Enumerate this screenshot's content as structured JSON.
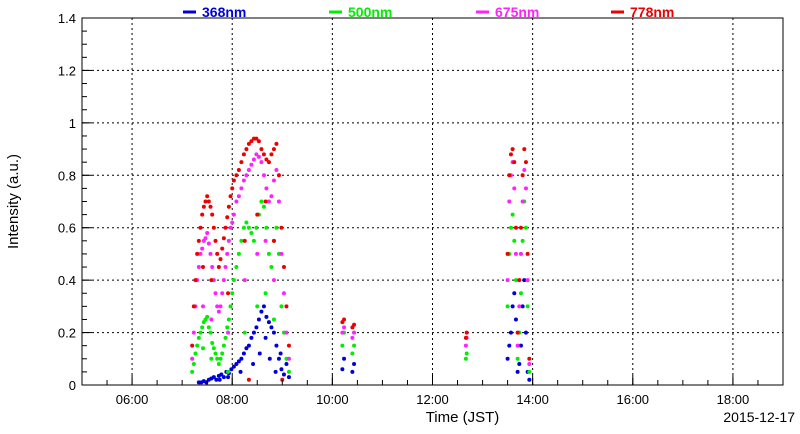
{
  "chart_data": {
    "type": "scatter",
    "xlabel": "Time (JST)",
    "ylabel": "Intensity (a.u.)",
    "date_label": "2015-12-17",
    "xlim": [
      "05:00",
      "19:00"
    ],
    "ylim": [
      0,
      1.4
    ],
    "x_ticks": [
      "06:00",
      "08:00",
      "10:00",
      "12:00",
      "14:00",
      "16:00",
      "18:00"
    ],
    "y_ticks": [
      "0",
      "0.2",
      "0.4",
      "0.6",
      "0.8",
      "1",
      "1.2",
      "1.4"
    ],
    "grid": true,
    "legend_position": "top",
    "series": [
      {
        "name": "368nm",
        "color": "#0000dd",
        "points": [
          [
            "07:20",
            0.01
          ],
          [
            "07:23",
            0.01
          ],
          [
            "07:26",
            0.015
          ],
          [
            "07:29",
            0.01
          ],
          [
            "07:32",
            0.02
          ],
          [
            "07:35",
            0.025
          ],
          [
            "07:38",
            0.03
          ],
          [
            "07:41",
            0.02
          ],
          [
            "07:44",
            0.035
          ],
          [
            "07:47",
            0.04
          ],
          [
            "07:50",
            0.03
          ],
          [
            "07:53",
            0.05
          ],
          [
            "07:56",
            0.045
          ],
          [
            "07:59",
            0.06
          ],
          [
            "08:02",
            0.07
          ],
          [
            "08:05",
            0.08
          ],
          [
            "08:08",
            0.09
          ],
          [
            "08:11",
            0.1
          ],
          [
            "08:14",
            0.12
          ],
          [
            "08:17",
            0.14
          ],
          [
            "08:20",
            0.15
          ],
          [
            "08:23",
            0.18
          ],
          [
            "08:26",
            0.2
          ],
          [
            "08:29",
            0.22
          ],
          [
            "08:32",
            0.25
          ],
          [
            "08:35",
            0.28
          ],
          [
            "08:38",
            0.3
          ],
          [
            "08:41",
            0.26
          ],
          [
            "08:44",
            0.24
          ],
          [
            "08:47",
            0.22
          ],
          [
            "08:50",
            0.2
          ],
          [
            "08:53",
            0.15
          ],
          [
            "08:56",
            0.1
          ],
          [
            "08:59",
            0.06
          ],
          [
            "09:02",
            0.04
          ],
          [
            "09:05",
            0.08
          ],
          [
            "09:08",
            0.03
          ],
          [
            "07:45",
            0.02
          ],
          [
            "07:55",
            0.03
          ],
          [
            "08:10",
            0.05
          ],
          [
            "08:25",
            0.08
          ],
          [
            "08:33",
            0.12
          ],
          [
            "08:40",
            0.18
          ],
          [
            "08:45",
            0.1
          ],
          [
            "08:52",
            0.05
          ],
          [
            "08:58",
            0.12
          ],
          [
            "10:12",
            0.06
          ],
          [
            "10:14",
            0.1
          ],
          [
            "10:24",
            0.05
          ],
          [
            "10:26",
            0.08
          ],
          [
            "13:30",
            0.1
          ],
          [
            "13:32",
            0.15
          ],
          [
            "13:34",
            0.2
          ],
          [
            "13:36",
            0.3
          ],
          [
            "13:38",
            0.35
          ],
          [
            "13:40",
            0.25
          ],
          [
            "13:42",
            0.05
          ],
          [
            "13:44",
            0.08
          ],
          [
            "13:46",
            0.15
          ],
          [
            "13:48",
            0.3
          ],
          [
            "13:50",
            0.4
          ],
          [
            "13:52",
            0.2
          ],
          [
            "13:54",
            0.05
          ],
          [
            "13:56",
            0.02
          ]
        ]
      },
      {
        "name": "500nm",
        "color": "#00ee00",
        "points": [
          [
            "07:12",
            0.05
          ],
          [
            "07:14",
            0.08
          ],
          [
            "07:16",
            0.12
          ],
          [
            "07:18",
            0.15
          ],
          [
            "07:20",
            0.18
          ],
          [
            "07:22",
            0.2
          ],
          [
            "07:24",
            0.22
          ],
          [
            "07:26",
            0.24
          ],
          [
            "07:28",
            0.25
          ],
          [
            "07:30",
            0.26
          ],
          [
            "07:32",
            0.22
          ],
          [
            "07:34",
            0.2
          ],
          [
            "07:36",
            0.16
          ],
          [
            "07:38",
            0.14
          ],
          [
            "07:40",
            0.12
          ],
          [
            "07:42",
            0.1
          ],
          [
            "07:44",
            0.08
          ],
          [
            "07:46",
            0.1
          ],
          [
            "07:48",
            0.12
          ],
          [
            "07:50",
            0.15
          ],
          [
            "07:52",
            0.18
          ],
          [
            "07:54",
            0.22
          ],
          [
            "07:56",
            0.25
          ],
          [
            "07:58",
            0.3
          ],
          [
            "08:00",
            0.35
          ],
          [
            "08:02",
            0.4
          ],
          [
            "08:05",
            0.45
          ],
          [
            "08:08",
            0.5
          ],
          [
            "08:11",
            0.55
          ],
          [
            "08:14",
            0.6
          ],
          [
            "08:17",
            0.62
          ],
          [
            "08:20",
            0.6
          ],
          [
            "08:23",
            0.58
          ],
          [
            "08:26",
            0.55
          ],
          [
            "08:29",
            0.6
          ],
          [
            "08:32",
            0.65
          ],
          [
            "08:35",
            0.7
          ],
          [
            "08:38",
            0.68
          ],
          [
            "08:41",
            0.6
          ],
          [
            "08:44",
            0.5
          ],
          [
            "08:47",
            0.45
          ],
          [
            "08:50",
            0.55
          ],
          [
            "08:53",
            0.6
          ],
          [
            "08:56",
            0.5
          ],
          [
            "08:59",
            0.3
          ],
          [
            "09:02",
            0.2
          ],
          [
            "09:05",
            0.1
          ],
          [
            "09:08",
            0.05
          ],
          [
            "07:25",
            0.14
          ],
          [
            "07:35",
            0.1
          ],
          [
            "07:55",
            0.05
          ],
          [
            "08:15",
            0.2
          ],
          [
            "08:30",
            0.3
          ],
          [
            "08:40",
            0.35
          ],
          [
            "08:50",
            0.25
          ],
          [
            "10:12",
            0.15
          ],
          [
            "10:14",
            0.2
          ],
          [
            "10:24",
            0.12
          ],
          [
            "10:26",
            0.15
          ],
          [
            "12:40",
            0.1
          ],
          [
            "12:41",
            0.12
          ],
          [
            "13:30",
            0.3
          ],
          [
            "13:32",
            0.5
          ],
          [
            "13:34",
            0.6
          ],
          [
            "13:36",
            0.65
          ],
          [
            "13:38",
            0.55
          ],
          [
            "13:40",
            0.4
          ],
          [
            "13:42",
            0.1
          ],
          [
            "13:44",
            0.2
          ],
          [
            "13:46",
            0.35
          ],
          [
            "13:48",
            0.55
          ],
          [
            "13:50",
            0.7
          ],
          [
            "13:52",
            0.6
          ],
          [
            "13:54",
            0.3
          ],
          [
            "13:56",
            0.05
          ]
        ]
      },
      {
        "name": "675nm",
        "color": "#ff22ff",
        "points": [
          [
            "07:12",
            0.1
          ],
          [
            "07:14",
            0.2
          ],
          [
            "07:16",
            0.3
          ],
          [
            "07:18",
            0.4
          ],
          [
            "07:20",
            0.45
          ],
          [
            "07:22",
            0.5
          ],
          [
            "07:24",
            0.52
          ],
          [
            "07:26",
            0.55
          ],
          [
            "07:28",
            0.56
          ],
          [
            "07:30",
            0.58
          ],
          [
            "07:32",
            0.54
          ],
          [
            "07:34",
            0.5
          ],
          [
            "07:36",
            0.45
          ],
          [
            "07:38",
            0.4
          ],
          [
            "07:40",
            0.35
          ],
          [
            "07:42",
            0.3
          ],
          [
            "07:44",
            0.28
          ],
          [
            "07:46",
            0.3
          ],
          [
            "07:48",
            0.35
          ],
          [
            "07:50",
            0.4
          ],
          [
            "07:52",
            0.45
          ],
          [
            "07:54",
            0.5
          ],
          [
            "07:56",
            0.55
          ],
          [
            "07:58",
            0.6
          ],
          [
            "08:00",
            0.62
          ],
          [
            "08:02",
            0.65
          ],
          [
            "08:05",
            0.7
          ],
          [
            "08:08",
            0.72
          ],
          [
            "08:11",
            0.75
          ],
          [
            "08:14",
            0.78
          ],
          [
            "08:17",
            0.8
          ],
          [
            "08:20",
            0.82
          ],
          [
            "08:23",
            0.84
          ],
          [
            "08:26",
            0.86
          ],
          [
            "08:29",
            0.88
          ],
          [
            "08:32",
            0.87
          ],
          [
            "08:35",
            0.85
          ],
          [
            "08:38",
            0.8
          ],
          [
            "08:41",
            0.75
          ],
          [
            "08:44",
            0.7
          ],
          [
            "08:47",
            0.72
          ],
          [
            "08:50",
            0.78
          ],
          [
            "08:53",
            0.82
          ],
          [
            "08:56",
            0.7
          ],
          [
            "08:59",
            0.5
          ],
          [
            "09:02",
            0.35
          ],
          [
            "09:05",
            0.2
          ],
          [
            "09:08",
            0.1
          ],
          [
            "07:25",
            0.3
          ],
          [
            "07:35",
            0.25
          ],
          [
            "07:55",
            0.2
          ],
          [
            "08:15",
            0.4
          ],
          [
            "08:30",
            0.5
          ],
          [
            "08:40",
            0.55
          ],
          [
            "08:50",
            0.4
          ],
          [
            "10:12",
            0.2
          ],
          [
            "10:14",
            0.22
          ],
          [
            "10:24",
            0.18
          ],
          [
            "10:26",
            0.2
          ],
          [
            "12:40",
            0.15
          ],
          [
            "12:41",
            0.18
          ],
          [
            "13:30",
            0.4
          ],
          [
            "13:32",
            0.7
          ],
          [
            "13:34",
            0.8
          ],
          [
            "13:36",
            0.85
          ],
          [
            "13:38",
            0.75
          ],
          [
            "13:40",
            0.5
          ],
          [
            "13:42",
            0.15
          ],
          [
            "13:44",
            0.3
          ],
          [
            "13:46",
            0.5
          ],
          [
            "13:48",
            0.7
          ],
          [
            "13:50",
            0.82
          ],
          [
            "13:52",
            0.75
          ],
          [
            "13:54",
            0.4
          ],
          [
            "13:56",
            0.08
          ]
        ]
      },
      {
        "name": "778nm",
        "color": "#ee0000",
        "points": [
          [
            "07:12",
            0.15
          ],
          [
            "07:14",
            0.3
          ],
          [
            "07:16",
            0.4
          ],
          [
            "07:18",
            0.5
          ],
          [
            "07:20",
            0.55
          ],
          [
            "07:22",
            0.6
          ],
          [
            "07:24",
            0.65
          ],
          [
            "07:26",
            0.68
          ],
          [
            "07:28",
            0.7
          ],
          [
            "07:30",
            0.72
          ],
          [
            "07:32",
            0.7
          ],
          [
            "07:34",
            0.68
          ],
          [
            "07:36",
            0.65
          ],
          [
            "07:38",
            0.6
          ],
          [
            "07:40",
            0.55
          ],
          [
            "07:42",
            0.5
          ],
          [
            "07:44",
            0.45
          ],
          [
            "07:46",
            0.48
          ],
          [
            "07:48",
            0.52
          ],
          [
            "07:50",
            0.56
          ],
          [
            "07:52",
            0.6
          ],
          [
            "07:54",
            0.64
          ],
          [
            "07:56",
            0.68
          ],
          [
            "07:58",
            0.72
          ],
          [
            "08:00",
            0.75
          ],
          [
            "08:02",
            0.78
          ],
          [
            "08:05",
            0.8
          ],
          [
            "08:08",
            0.82
          ],
          [
            "08:11",
            0.85
          ],
          [
            "08:14",
            0.88
          ],
          [
            "08:17",
            0.9
          ],
          [
            "08:20",
            0.92
          ],
          [
            "08:23",
            0.93
          ],
          [
            "08:26",
            0.94
          ],
          [
            "08:29",
            0.94
          ],
          [
            "08:32",
            0.93
          ],
          [
            "08:35",
            0.9
          ],
          [
            "08:38",
            0.88
          ],
          [
            "08:41",
            0.86
          ],
          [
            "08:44",
            0.85
          ],
          [
            "08:47",
            0.88
          ],
          [
            "08:50",
            0.9
          ],
          [
            "08:53",
            0.92
          ],
          [
            "08:56",
            0.8
          ],
          [
            "08:59",
            0.6
          ],
          [
            "09:02",
            0.45
          ],
          [
            "09:05",
            0.3
          ],
          [
            "09:08",
            0.15
          ],
          [
            "07:25",
            0.45
          ],
          [
            "07:35",
            0.4
          ],
          [
            "07:55",
            0.35
          ],
          [
            "08:15",
            0.55
          ],
          [
            "08:30",
            0.65
          ],
          [
            "08:40",
            0.7
          ],
          [
            "08:50",
            0.55
          ],
          [
            "09:00",
            0.02
          ],
          [
            "08:20",
            0.02
          ],
          [
            "10:12",
            0.24
          ],
          [
            "10:14",
            0.25
          ],
          [
            "10:24",
            0.22
          ],
          [
            "10:26",
            0.23
          ],
          [
            "12:40",
            0.18
          ],
          [
            "12:41",
            0.2
          ],
          [
            "13:30",
            0.5
          ],
          [
            "13:32",
            0.8
          ],
          [
            "13:34",
            0.88
          ],
          [
            "13:36",
            0.9
          ],
          [
            "13:38",
            0.85
          ],
          [
            "13:40",
            0.6
          ],
          [
            "13:42",
            0.2
          ],
          [
            "13:44",
            0.4
          ],
          [
            "13:46",
            0.6
          ],
          [
            "13:48",
            0.8
          ],
          [
            "13:50",
            0.9
          ],
          [
            "13:52",
            0.85
          ],
          [
            "13:54",
            0.5
          ],
          [
            "13:56",
            0.1
          ]
        ]
      }
    ]
  }
}
